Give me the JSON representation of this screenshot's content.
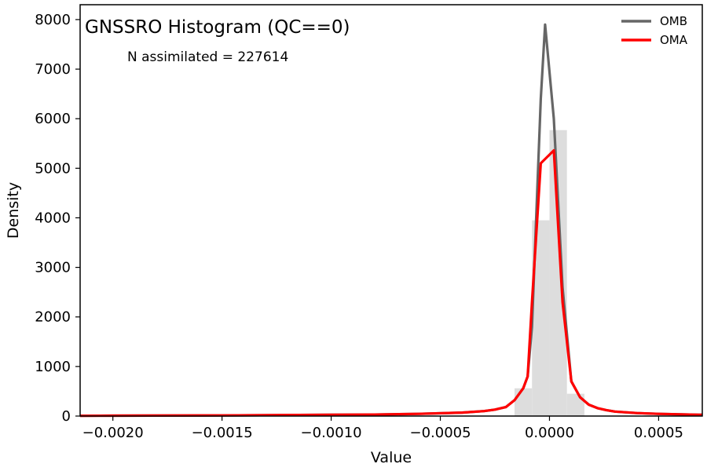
{
  "chart_data": {
    "type": "line",
    "title": "GNSSRO Histogram (QC==0)",
    "annotation": "N assimilated = 227614",
    "xlabel": "Value",
    "ylabel": "Density",
    "xlim": [
      -0.00215,
      0.0007
    ],
    "ylim": [
      0,
      8300
    ],
    "xticks": [
      -0.002,
      -0.0015,
      -0.001,
      -0.0005,
      0.0,
      0.0005
    ],
    "xtick_labels": [
      "−0.0020",
      "−0.0015",
      "−0.0010",
      "−0.0005",
      "0.0000",
      "0.0005"
    ],
    "yticks": [
      0,
      1000,
      2000,
      3000,
      4000,
      5000,
      6000,
      7000,
      8000
    ],
    "ytick_labels": [
      "0",
      "1000",
      "2000",
      "3000",
      "4000",
      "5000",
      "6000",
      "7000",
      "8000"
    ],
    "legend_position": "top-right",
    "histogram": {
      "color": "#dddddd",
      "bins": [
        {
          "x0": -0.00016,
          "x1": -8e-05,
          "value": 560
        },
        {
          "x0": -8e-05,
          "x1": 0.0,
          "value": 3950
        },
        {
          "x0": 0.0,
          "x1": 8e-05,
          "value": 5770
        },
        {
          "x0": 8e-05,
          "x1": 0.00016,
          "value": 450
        }
      ]
    },
    "series": [
      {
        "name": "OMB",
        "color": "#666666",
        "x": [
          -0.00215,
          -0.002,
          -0.0015,
          -0.001,
          -0.0008,
          -0.0006,
          -0.0004,
          -0.0003,
          -0.00025,
          -0.0002,
          -0.00016,
          -0.00012,
          -0.0001,
          -8e-05,
          -4e-05,
          -2e-05,
          2e-05,
          6e-05,
          0.0001,
          0.00014,
          0.00018,
          0.00022,
          0.00026,
          0.0003,
          0.0004,
          0.0005,
          0.0006,
          0.0007
        ],
        "y": [
          5,
          8,
          12,
          25,
          30,
          45,
          70,
          100,
          130,
          180,
          320,
          560,
          800,
          1800,
          6400,
          7900,
          6000,
          2600,
          700,
          380,
          230,
          160,
          120,
          90,
          60,
          45,
          35,
          25
        ]
      },
      {
        "name": "OMA",
        "color": "#ff0000",
        "x": [
          -0.00215,
          -0.002,
          -0.0015,
          -0.001,
          -0.0008,
          -0.0006,
          -0.0004,
          -0.0003,
          -0.00025,
          -0.0002,
          -0.00016,
          -0.00012,
          -0.0001,
          -8e-05,
          -4e-05,
          2e-05,
          6e-05,
          0.0001,
          0.00014,
          0.00018,
          0.00022,
          0.00026,
          0.0003,
          0.0004,
          0.0005,
          0.0006,
          0.0007
        ],
        "y": [
          5,
          8,
          12,
          25,
          30,
          45,
          70,
          100,
          130,
          180,
          320,
          560,
          800,
          2300,
          5100,
          5360,
          2300,
          700,
          380,
          230,
          160,
          120,
          90,
          60,
          45,
          35,
          25
        ]
      }
    ]
  }
}
